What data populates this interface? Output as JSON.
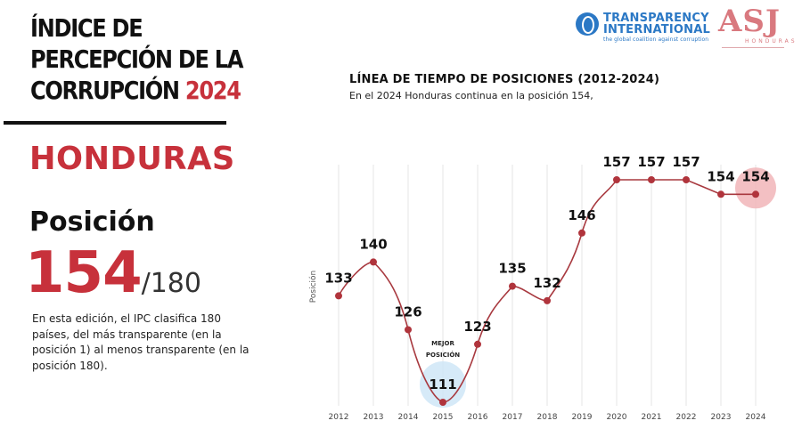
{
  "header": {
    "title_lines": [
      "ÍNDICE DE",
      "PERCEPCIÓN DE LA",
      "CORRUPCIÓN"
    ],
    "title_year": "2024"
  },
  "country": "HONDURAS",
  "position_label": "Posición",
  "rank": {
    "value": "154",
    "total": "/180"
  },
  "description": "En esta edición, el IPC clasifica 180 países, del más transparente (en la posición 1) al menos transparente (en la posición 180).",
  "logos": {
    "ti_line1": "TRANSPARENCY",
    "ti_line2": "INTERNATIONAL",
    "ti_tagline": "the global coalition against corruption",
    "asj_mark": "ASJ",
    "asj_sub": "HONDURAS"
  },
  "chart_data": {
    "type": "line",
    "title": "LÍNEA DE TIEMPO DE POSICIONES (2012-2024)",
    "subtitle": "En el 2024 Honduras continua en la posición 154,",
    "ylabel": "Posición",
    "y_inverted": true,
    "grid": "vertical",
    "x": [
      2012,
      2013,
      2014,
      2015,
      2016,
      2017,
      2018,
      2019,
      2020,
      2021,
      2022,
      2023,
      2024
    ],
    "values": [
      133,
      140,
      126,
      111,
      123,
      135,
      132,
      146,
      157,
      157,
      157,
      154,
      154
    ],
    "annotation": {
      "year": 2015,
      "label_lines": [
        "MEJOR",
        "POSICIÓN"
      ]
    },
    "highlight_year": 2024,
    "colors": {
      "line": "#a8393f",
      "point": "#b0343c",
      "best_halo": "#cfe6f7",
      "current_halo": "#f1b5b9"
    }
  }
}
